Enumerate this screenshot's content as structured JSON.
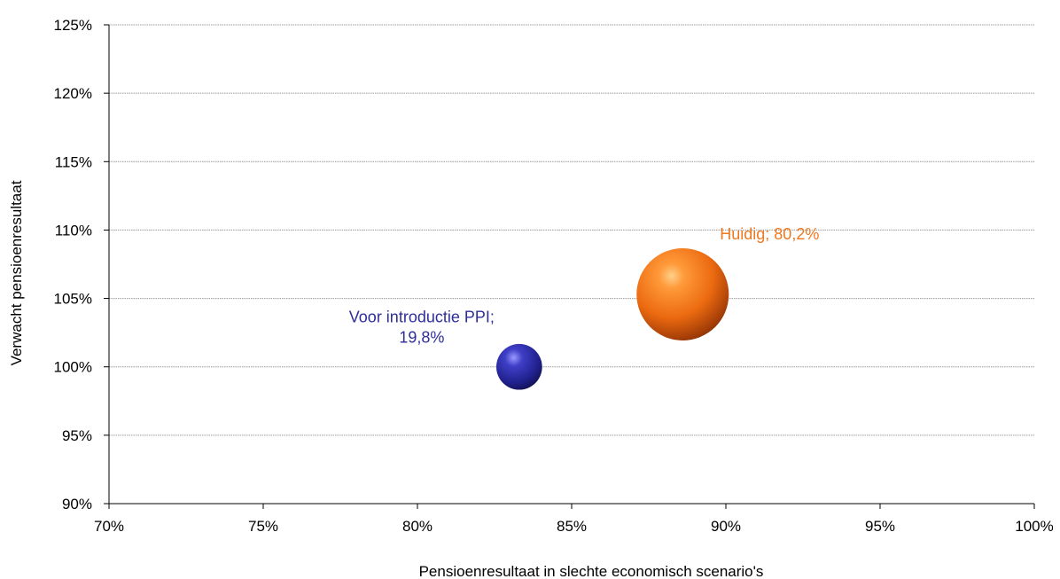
{
  "chart_data": {
    "type": "bubble",
    "title": "",
    "xlabel": "Pensioenresultaat in slechte economisch scenario's",
    "ylabel": "Verwacht pensioenresultaat",
    "xlim": [
      70,
      100
    ],
    "ylim": [
      90,
      125
    ],
    "x_ticks": [
      70,
      75,
      80,
      85,
      90,
      95,
      100
    ],
    "y_ticks": [
      90,
      95,
      100,
      105,
      110,
      115,
      120,
      125
    ],
    "x_tick_labels": [
      "70%",
      "75%",
      "80%",
      "85%",
      "90%",
      "95%",
      "100%"
    ],
    "y_tick_labels": [
      "90%",
      "95%",
      "100%",
      "105%",
      "110%",
      "115%",
      "120%",
      "125%"
    ],
    "grid": true,
    "series": [
      {
        "name": "Voor introductie PPI",
        "x": 83.3,
        "y": 100.0,
        "size": 19.8,
        "color": "#2e2e9a",
        "label_lines": [
          "Voor introductie PPI;",
          "19,8%"
        ]
      },
      {
        "name": "Huidig",
        "x": 88.6,
        "y": 105.3,
        "size": 80.2,
        "color": "#f07820",
        "label_lines": [
          "Huidig; 80,2%"
        ]
      }
    ]
  }
}
